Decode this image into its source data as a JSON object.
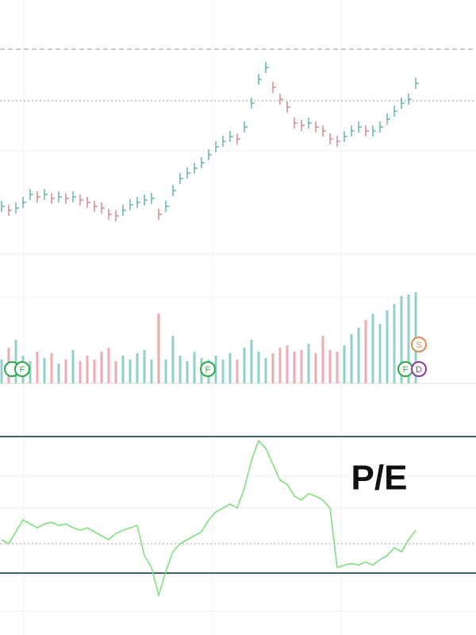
{
  "chart_data": [
    {
      "type": "tick",
      "color_up": "#4fa9a0",
      "color_down": "#c9787c",
      "ylim": [
        0,
        250
      ],
      "values": [
        40,
        35,
        38,
        45,
        55,
        52,
        55,
        50,
        52,
        50,
        52,
        48,
        45,
        40,
        38,
        30,
        28,
        35,
        42,
        45,
        48,
        50,
        30,
        40,
        60,
        75,
        82,
        88,
        95,
        105,
        115,
        122,
        128,
        125,
        140,
        170,
        200,
        215,
        190,
        175,
        165,
        145,
        142,
        145,
        140,
        135,
        125,
        122,
        128,
        135,
        140,
        135,
        135,
        140,
        150,
        160,
        170,
        175,
        195
      ]
    },
    {
      "type": "bar",
      "color_up": "#8fd0c8",
      "color_down": "#eeaaae",
      "ylim": [
        0,
        120
      ],
      "values": [
        30,
        45,
        55,
        35,
        28,
        40,
        32,
        38,
        25,
        30,
        42,
        28,
        35,
        30,
        40,
        45,
        28,
        35,
        30,
        38,
        42,
        30,
        88,
        30,
        60,
        35,
        28,
        40,
        32,
        30,
        35,
        30,
        38,
        30,
        45,
        55,
        40,
        32,
        38,
        45,
        48,
        40,
        42,
        50,
        38,
        60,
        42,
        40,
        48,
        62,
        70,
        80,
        88,
        75,
        92,
        100,
        110,
        112,
        115
      ],
      "markers": [
        {
          "label": ""
        },
        {
          "label": "F"
        },
        {
          "label": "F"
        },
        {
          "label": "F"
        },
        {
          "label": "S"
        },
        {
          "label": "D"
        }
      ]
    },
    {
      "type": "line",
      "color": "#7ee07e",
      "ylim": [
        0,
        210
      ],
      "title": "P/E",
      "values": [
        80,
        75,
        90,
        105,
        100,
        95,
        100,
        102,
        98,
        100,
        95,
        92,
        95,
        90,
        85,
        80,
        88,
        92,
        95,
        98,
        60,
        45,
        10,
        40,
        65,
        75,
        80,
        85,
        90,
        105,
        115,
        120,
        125,
        120,
        145,
        180,
        205,
        195,
        175,
        155,
        150,
        135,
        130,
        138,
        135,
        130,
        120,
        45,
        48,
        50,
        48,
        52,
        48,
        55,
        60,
        70,
        65,
        80,
        92
      ]
    }
  ]
}
